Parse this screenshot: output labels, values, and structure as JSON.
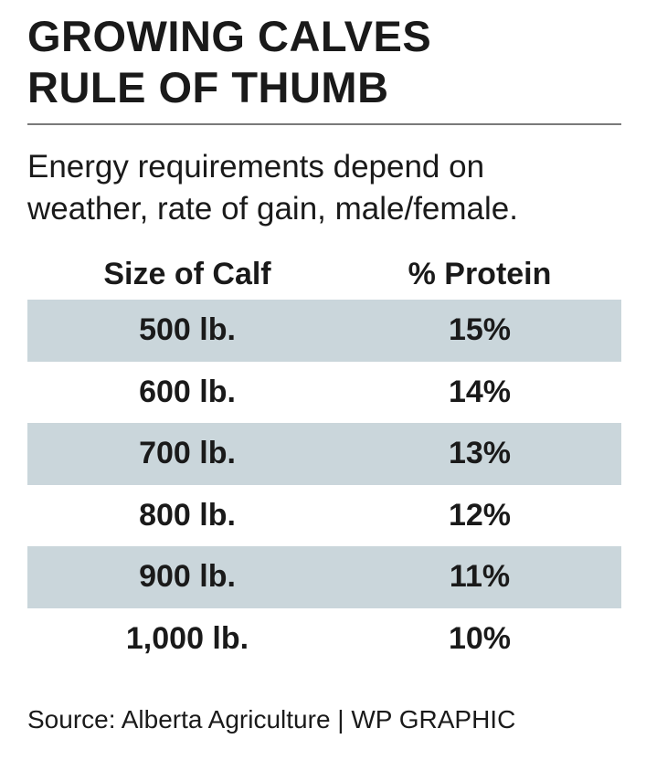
{
  "title_lines": [
    "GROWING CALVES",
    "RULE OF THUMB"
  ],
  "subtitle_lines": [
    "Energy requirements depend on",
    "weather, rate of gain, male/female."
  ],
  "source": "Source: Alberta Agriculture  |  WP GRAPHIC",
  "colors": {
    "row_shade": "#cad6db",
    "rule": "#7a7a7a",
    "text": "#1a1a1a"
  },
  "chart_data": {
    "type": "table",
    "title": "GROWING CALVES RULE OF THUMB",
    "subtitle": "Energy requirements depend on weather, rate of gain, male/female.",
    "columns": [
      "Size of Calf",
      "% Protein"
    ],
    "rows": [
      {
        "size": "500 lb.",
        "protein": "15%",
        "shaded": true
      },
      {
        "size": "600 lb.",
        "protein": "14%",
        "shaded": false
      },
      {
        "size": "700 lb.",
        "protein": "13%",
        "shaded": true
      },
      {
        "size": "800 lb.",
        "protein": "12%",
        "shaded": false
      },
      {
        "size": "900 lb.",
        "protein": "11%",
        "shaded": true
      },
      {
        "size": "1,000 lb.",
        "protein": "10%",
        "shaded": false
      }
    ],
    "calf_size_lb": [
      500,
      600,
      700,
      800,
      900,
      1000
    ],
    "protein_percent": [
      15,
      14,
      13,
      12,
      11,
      10
    ]
  }
}
